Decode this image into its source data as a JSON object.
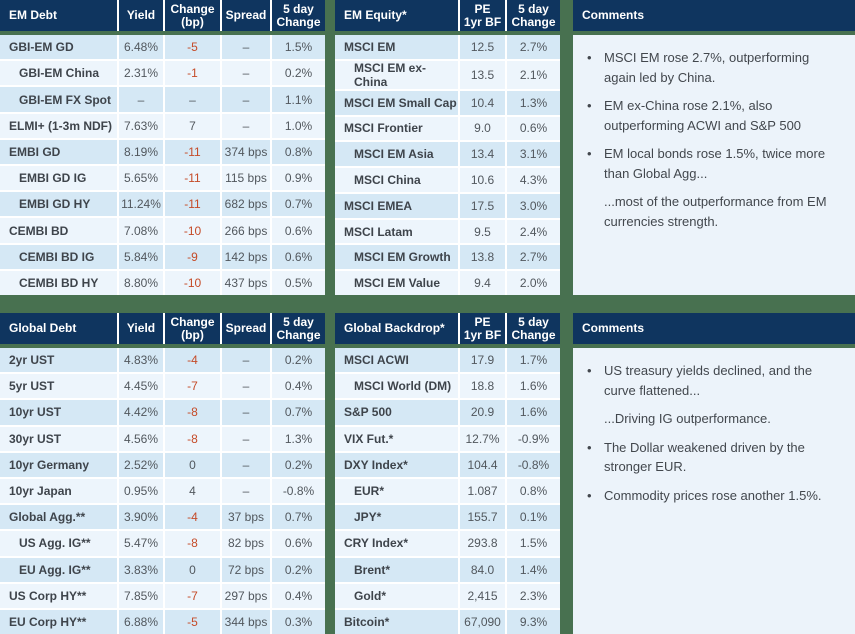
{
  "colors": {
    "header_bg": "#0f355f",
    "frame_green": "#487150",
    "row_dark": "#d5e8f5",
    "row_light": "#edf5fc",
    "comments_bg": "#ecf3fa",
    "negative": "#c54b28",
    "label_text": "#3e444b",
    "value_text": "#51575d",
    "header_text": "#ffffff"
  },
  "panels": {
    "em_debt": {
      "title": "EM Debt",
      "columns": [
        "Yield",
        "Change\n(bp)",
        "Spread",
        "5 day\nChange"
      ],
      "red_value_col": 1,
      "rows": [
        {
          "label": "GBI-EM GD",
          "indent": false,
          "values": [
            "6.48%",
            "-5",
            "–",
            "1.5%"
          ]
        },
        {
          "label": "GBI-EM China",
          "indent": true,
          "values": [
            "2.31%",
            "-1",
            "–",
            "0.2%"
          ]
        },
        {
          "label": "GBI-EM FX Spot",
          "indent": true,
          "values": [
            "–",
            "–",
            "–",
            "1.1%"
          ]
        },
        {
          "label": "ELMI+ (1-3m NDF)",
          "indent": false,
          "values": [
            "7.63%",
            "7",
            "–",
            "1.0%"
          ]
        },
        {
          "label": "EMBI GD",
          "indent": false,
          "values": [
            "8.19%",
            "-11",
            "374 bps",
            "0.8%"
          ]
        },
        {
          "label": "EMBI GD IG",
          "indent": true,
          "values": [
            "5.65%",
            "-11",
            "115 bps",
            "0.9%"
          ]
        },
        {
          "label": "EMBI GD HY",
          "indent": true,
          "values": [
            "11.24%",
            "-11",
            "682 bps",
            "0.7%"
          ]
        },
        {
          "label": "CEMBI BD",
          "indent": false,
          "values": [
            "7.08%",
            "-10",
            "266 bps",
            "0.6%"
          ]
        },
        {
          "label": "CEMBI BD IG",
          "indent": true,
          "values": [
            "5.84%",
            "-9",
            "142 bps",
            "0.6%"
          ]
        },
        {
          "label": "CEMBI BD HY",
          "indent": true,
          "values": [
            "8.80%",
            "-10",
            "437 bps",
            "0.5%"
          ]
        }
      ]
    },
    "em_equity": {
      "title": "EM Equity*",
      "columns": [
        "PE\n1yr BF",
        "5 day\nChange"
      ],
      "red_value_col": null,
      "rows": [
        {
          "label": "MSCI EM",
          "indent": false,
          "values": [
            "12.5",
            "2.7%"
          ]
        },
        {
          "label": "MSCI EM ex-China",
          "indent": true,
          "values": [
            "13.5",
            "2.1%"
          ]
        },
        {
          "label": "MSCI EM Small Cap",
          "indent": false,
          "values": [
            "10.4",
            "1.3%"
          ]
        },
        {
          "label": "MSCI Frontier",
          "indent": false,
          "values": [
            "9.0",
            "0.6%"
          ]
        },
        {
          "label": "MSCI EM Asia",
          "indent": true,
          "values": [
            "13.4",
            "3.1%"
          ]
        },
        {
          "label": "MSCI China",
          "indent": true,
          "values": [
            "10.6",
            "4.3%"
          ]
        },
        {
          "label": "MSCI EMEA",
          "indent": false,
          "values": [
            "17.5",
            "3.0%"
          ]
        },
        {
          "label": "MSCI Latam",
          "indent": false,
          "values": [
            "9.5",
            "2.4%"
          ]
        },
        {
          "label": "MSCI EM Growth",
          "indent": true,
          "values": [
            "13.8",
            "2.7%"
          ]
        },
        {
          "label": "MSCI EM Value",
          "indent": true,
          "values": [
            "9.4",
            "2.0%"
          ]
        }
      ]
    },
    "global_debt": {
      "title": "Global Debt",
      "columns": [
        "Yield",
        "Change\n(bp)",
        "Spread",
        "5 day\nChange"
      ],
      "red_value_col": 1,
      "rows": [
        {
          "label": "2yr UST",
          "indent": false,
          "values": [
            "4.83%",
            "-4",
            "–",
            "0.2%"
          ]
        },
        {
          "label": "5yr UST",
          "indent": false,
          "values": [
            "4.45%",
            "-7",
            "–",
            "0.4%"
          ]
        },
        {
          "label": "10yr UST",
          "indent": false,
          "values": [
            "4.42%",
            "-8",
            "–",
            "0.7%"
          ]
        },
        {
          "label": "30yr UST",
          "indent": false,
          "values": [
            "4.56%",
            "-8",
            "–",
            "1.3%"
          ]
        },
        {
          "label": "10yr Germany",
          "indent": false,
          "values": [
            "2.52%",
            "0",
            "–",
            "0.2%"
          ]
        },
        {
          "label": "10yr Japan",
          "indent": false,
          "values": [
            "0.95%",
            "4",
            "–",
            "-0.8%"
          ]
        },
        {
          "label": "Global Agg.**",
          "indent": false,
          "values": [
            "3.90%",
            "-4",
            "37 bps",
            "0.7%"
          ]
        },
        {
          "label": "US Agg. IG**",
          "indent": true,
          "values": [
            "5.47%",
            "-8",
            "82 bps",
            "0.6%"
          ]
        },
        {
          "label": "EU Agg. IG**",
          "indent": true,
          "values": [
            "3.83%",
            "0",
            "72 bps",
            "0.2%"
          ]
        },
        {
          "label": "US Corp HY**",
          "indent": false,
          "values": [
            "7.85%",
            "-7",
            "297 bps",
            "0.4%"
          ]
        },
        {
          "label": "EU Corp HY**",
          "indent": false,
          "values": [
            "6.88%",
            "-5",
            "344 bps",
            "0.3%"
          ]
        }
      ]
    },
    "global_backdrop": {
      "title": "Global Backdrop*",
      "columns": [
        "PE\n1yr BF",
        "5 day\nChange"
      ],
      "red_value_col": null,
      "rows": [
        {
          "label": "MSCI ACWI",
          "indent": false,
          "values": [
            "17.9",
            "1.7%"
          ]
        },
        {
          "label": "MSCI World (DM)",
          "indent": true,
          "values": [
            "18.8",
            "1.6%"
          ]
        },
        {
          "label": "S&P 500",
          "indent": false,
          "values": [
            "20.9",
            "1.6%"
          ]
        },
        {
          "label": "VIX Fut.*",
          "indent": false,
          "values": [
            "12.7%",
            "-0.9%"
          ]
        },
        {
          "label": "DXY Index*",
          "indent": false,
          "values": [
            "104.4",
            "-0.8%"
          ]
        },
        {
          "label": "EUR*",
          "indent": true,
          "values": [
            "1.087",
            "0.8%"
          ]
        },
        {
          "label": "JPY*",
          "indent": true,
          "values": [
            "155.7",
            "0.1%"
          ]
        },
        {
          "label": "CRY Index*",
          "indent": false,
          "values": [
            "293.8",
            "1.5%"
          ]
        },
        {
          "label": "Brent*",
          "indent": true,
          "values": [
            "84.0",
            "1.4%"
          ]
        },
        {
          "label": "Gold*",
          "indent": true,
          "values": [
            "2,415",
            "2.3%"
          ]
        },
        {
          "label": "Bitcoin*",
          "indent": false,
          "values": [
            "67,090",
            "9.3%"
          ]
        }
      ]
    },
    "comments_top": {
      "title": "Comments",
      "items": [
        {
          "bullet": true,
          "text": "MSCI EM rose 2.7%, outperforming again led by China."
        },
        {
          "bullet": true,
          "text": "EM ex-China rose 2.1%, also outperforming ACWI and S&P 500"
        },
        {
          "bullet": true,
          "text": "EM local bonds rose 1.5%, twice more than Global Agg..."
        },
        {
          "bullet": false,
          "text": "...most of the outperformance from EM currencies strength."
        }
      ]
    },
    "comments_bottom": {
      "title": "Comments",
      "items": [
        {
          "bullet": true,
          "text": "US treasury yields declined, and the curve flattened..."
        },
        {
          "bullet": false,
          "text": "...Driving IG outperformance."
        },
        {
          "bullet": true,
          "text": "The Dollar weakened driven by the stronger EUR."
        },
        {
          "bullet": true,
          "text": "Commodity prices rose another 1.5%."
        }
      ]
    }
  }
}
